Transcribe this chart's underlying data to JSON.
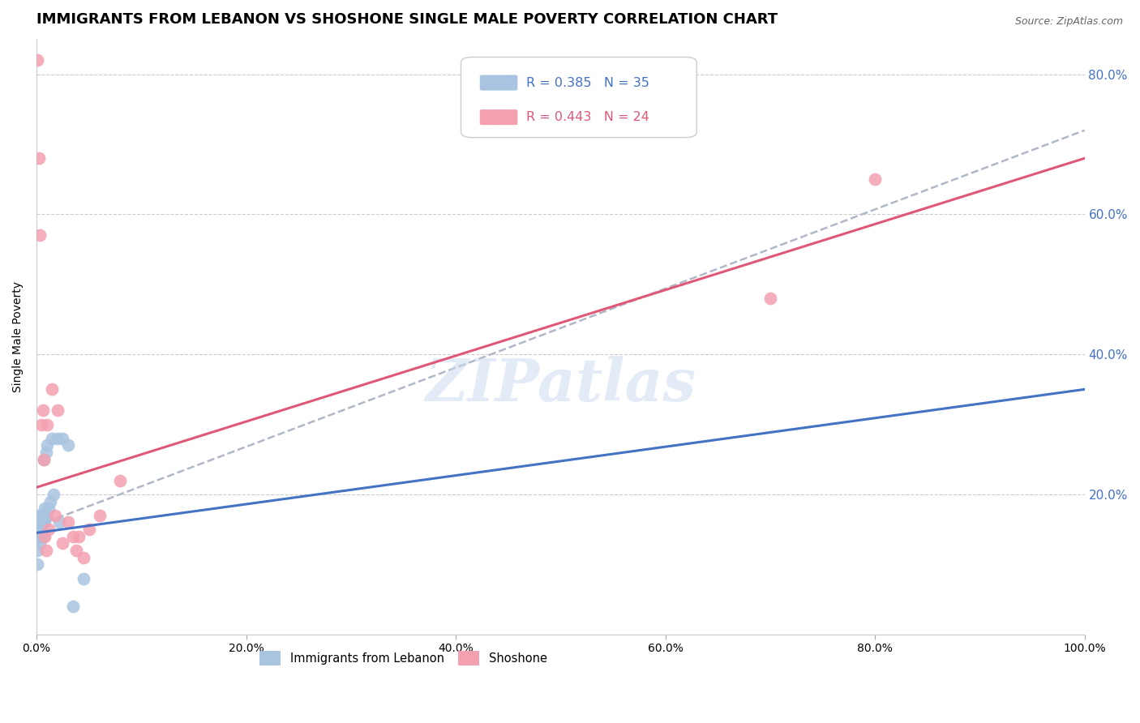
{
  "title": "IMMIGRANTS FROM LEBANON VS SHOSHONE SINGLE MALE POVERTY CORRELATION CHART",
  "source": "Source: ZipAtlas.com",
  "ylabel": "Single Male Poverty",
  "xlim": [
    0,
    1.0
  ],
  "ylim": [
    0,
    0.85
  ],
  "blue_R": 0.385,
  "blue_N": 35,
  "pink_R": 0.443,
  "pink_N": 24,
  "blue_color": "#a8c4e0",
  "pink_color": "#f4a0b0",
  "blue_line_color": "#4472c4",
  "pink_line_color": "#e05878",
  "dashed_line_color": "#b0b8c8",
  "watermark_color": "#c8d8f0",
  "grid_color": "#cccccc",
  "background_color": "#ffffff",
  "title_fontsize": 13,
  "blue_points_x": [
    0.001,
    0.001,
    0.001,
    0.001,
    0.001,
    0.001,
    0.002,
    0.002,
    0.002,
    0.003,
    0.003,
    0.003,
    0.004,
    0.004,
    0.005,
    0.005,
    0.006,
    0.006,
    0.007,
    0.007,
    0.008,
    0.008,
    0.009,
    0.01,
    0.01,
    0.012,
    0.013,
    0.015,
    0.016,
    0.02,
    0.022,
    0.025,
    0.03,
    0.035,
    0.045
  ],
  "blue_points_y": [
    0.14,
    0.15,
    0.16,
    0.17,
    0.12,
    0.1,
    0.15,
    0.16,
    0.14,
    0.15,
    0.14,
    0.13,
    0.14,
    0.16,
    0.17,
    0.15,
    0.16,
    0.14,
    0.17,
    0.25,
    0.18,
    0.16,
    0.26,
    0.27,
    0.17,
    0.18,
    0.19,
    0.28,
    0.2,
    0.28,
    0.16,
    0.28,
    0.27,
    0.04,
    0.08
  ],
  "pink_points_x": [
    0.001,
    0.002,
    0.003,
    0.005,
    0.006,
    0.007,
    0.008,
    0.009,
    0.01,
    0.012,
    0.015,
    0.018,
    0.02,
    0.025,
    0.03,
    0.035,
    0.038,
    0.04,
    0.045,
    0.05,
    0.06,
    0.08,
    0.7,
    0.8
  ],
  "pink_points_y": [
    0.82,
    0.68,
    0.57,
    0.3,
    0.32,
    0.25,
    0.14,
    0.12,
    0.3,
    0.15,
    0.35,
    0.17,
    0.32,
    0.13,
    0.16,
    0.14,
    0.12,
    0.14,
    0.11,
    0.15,
    0.17,
    0.22,
    0.48,
    0.65
  ],
  "blue_trend_x": [
    0.0,
    1.0
  ],
  "blue_trend_y": [
    0.145,
    0.35
  ],
  "pink_trend_x": [
    0.0,
    1.0
  ],
  "pink_trend_y": [
    0.21,
    0.68
  ],
  "dashed_trend_x": [
    0.0,
    1.0
  ],
  "dashed_trend_y": [
    0.155,
    0.72
  ]
}
